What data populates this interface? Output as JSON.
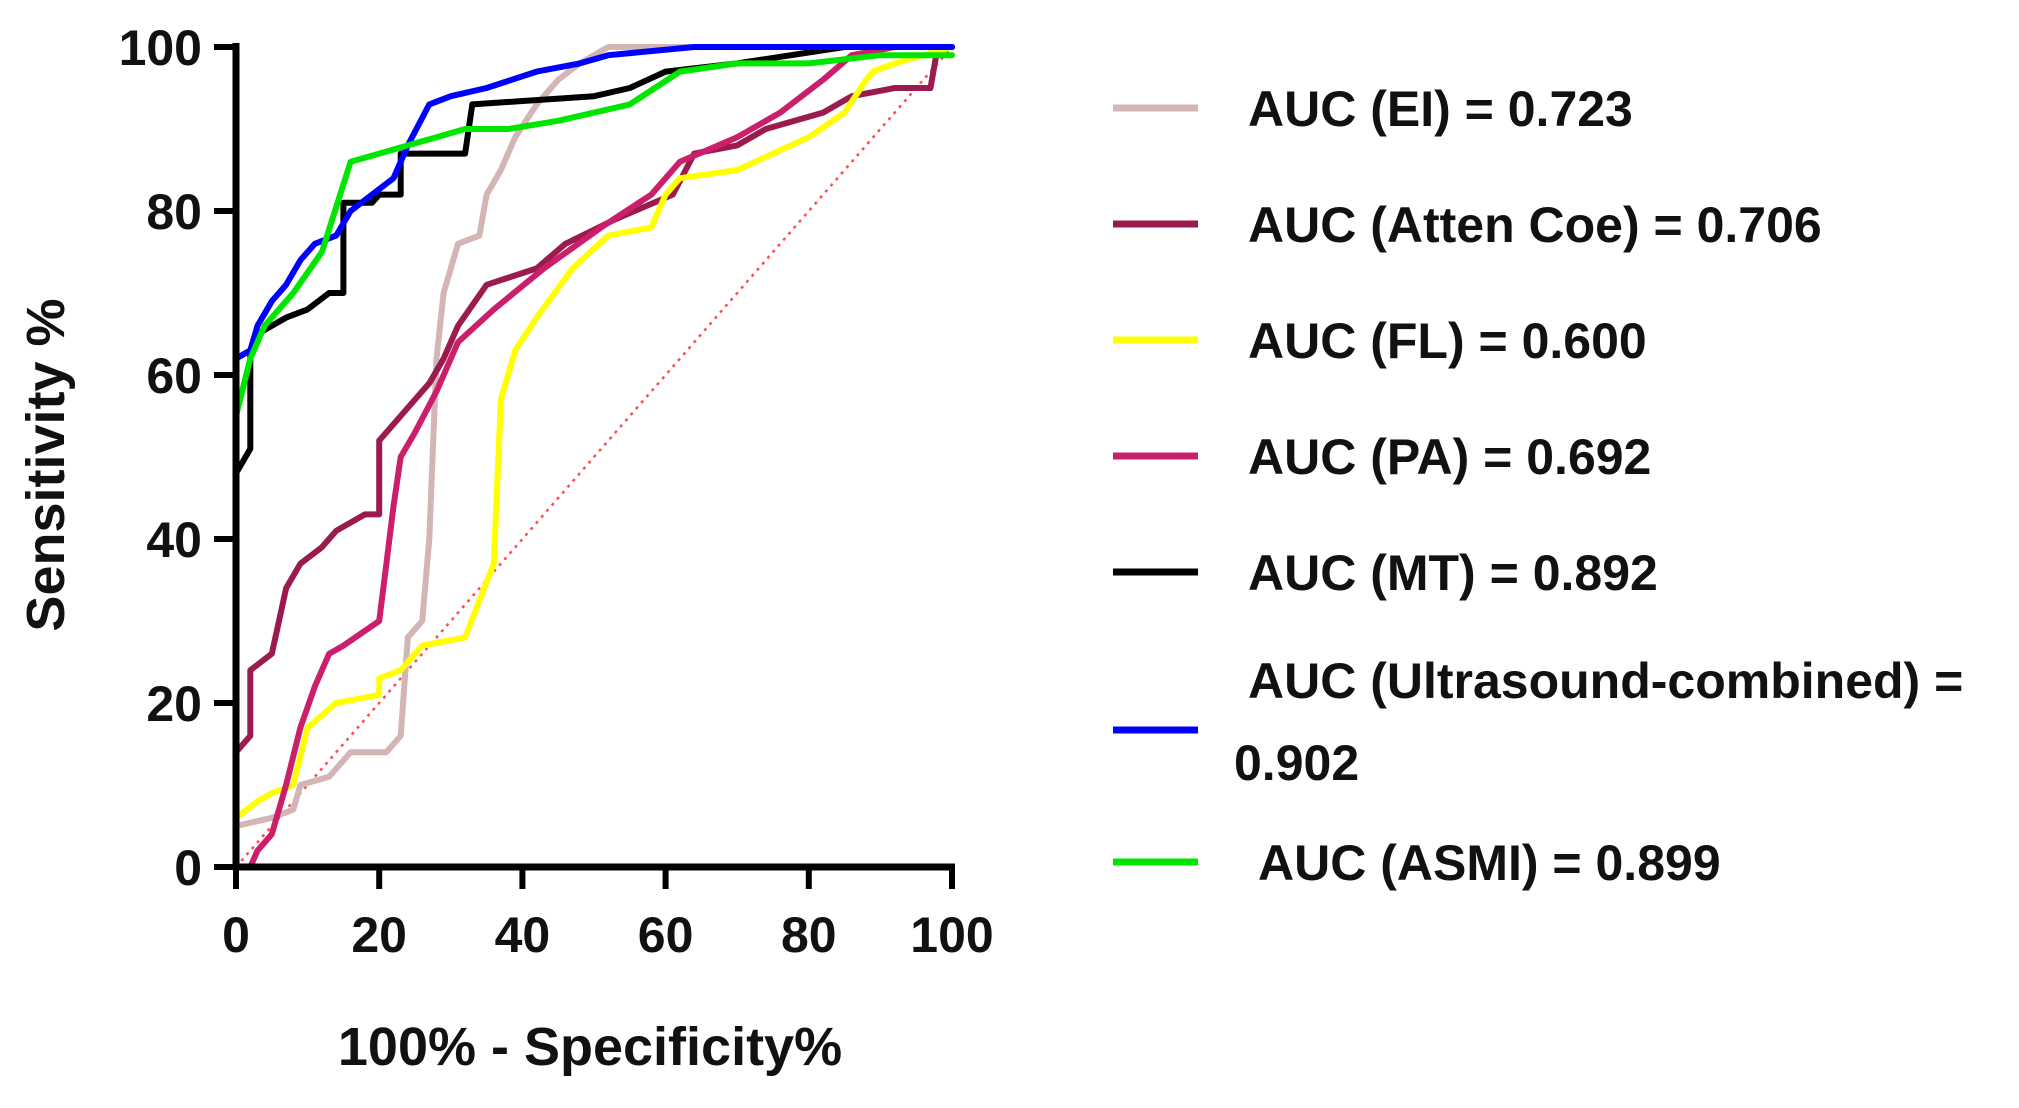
{
  "chart_data": {
    "type": "line",
    "title": "",
    "xlabel": "100% - Specificity%",
    "ylabel": "Sensitivity %",
    "xlim": [
      0,
      100
    ],
    "ylim": [
      0,
      100
    ],
    "x_ticks": [
      0,
      20,
      40,
      60,
      80,
      100
    ],
    "y_ticks": [
      0,
      20,
      40,
      60,
      80,
      100
    ],
    "grid": false,
    "legend_position": "right",
    "reference_line": {
      "style": "dotted",
      "color": "#ff4d4d",
      "points": [
        [
          0,
          0
        ],
        [
          100,
          100
        ]
      ]
    },
    "series": [
      {
        "name": "EI",
        "label": "AUC (EI)  = 0.723",
        "color": "#d4b5b5",
        "points": [
          [
            0,
            5
          ],
          [
            5,
            6
          ],
          [
            8,
            7
          ],
          [
            9,
            10
          ],
          [
            13,
            11
          ],
          [
            16,
            14
          ],
          [
            21,
            14
          ],
          [
            23,
            16
          ],
          [
            24,
            28
          ],
          [
            26,
            30
          ],
          [
            27,
            40
          ],
          [
            28,
            62
          ],
          [
            29,
            70
          ],
          [
            31,
            76
          ],
          [
            34,
            77
          ],
          [
            35,
            82
          ],
          [
            37,
            85
          ],
          [
            39,
            89
          ],
          [
            42,
            93
          ],
          [
            45,
            96
          ],
          [
            48,
            98
          ],
          [
            52,
            100
          ],
          [
            100,
            100
          ]
        ]
      },
      {
        "name": "Atten Coe",
        "label": "AUC (Atten Coe)  = 0.706",
        "color": "#9b1b4f",
        "points": [
          [
            0,
            14
          ],
          [
            2,
            16
          ],
          [
            2,
            24
          ],
          [
            5,
            26
          ],
          [
            6,
            30
          ],
          [
            7,
            34
          ],
          [
            9,
            37
          ],
          [
            12,
            39
          ],
          [
            14,
            41
          ],
          [
            18,
            43
          ],
          [
            20,
            43
          ],
          [
            20,
            52
          ],
          [
            22,
            54
          ],
          [
            27,
            59
          ],
          [
            29,
            62
          ],
          [
            31,
            66
          ],
          [
            35,
            71
          ],
          [
            42,
            73
          ],
          [
            46,
            76
          ],
          [
            53,
            79
          ],
          [
            61,
            82
          ],
          [
            64,
            87
          ],
          [
            70,
            88
          ],
          [
            74,
            90
          ],
          [
            82,
            92
          ],
          [
            86,
            94
          ],
          [
            92,
            95
          ],
          [
            97,
            95
          ],
          [
            98,
            100
          ],
          [
            100,
            100
          ]
        ]
      },
      {
        "name": "FL",
        "label": "AUC (FL)  = 0.600",
        "color": "#ffff00",
        "points": [
          [
            0,
            6
          ],
          [
            3,
            8
          ],
          [
            5,
            9
          ],
          [
            8,
            10
          ],
          [
            10,
            17
          ],
          [
            14,
            20
          ],
          [
            20,
            21
          ],
          [
            20,
            23
          ],
          [
            23,
            24
          ],
          [
            26,
            27
          ],
          [
            32,
            28
          ],
          [
            36,
            37
          ],
          [
            37,
            57
          ],
          [
            39,
            63
          ],
          [
            42,
            67
          ],
          [
            47,
            73
          ],
          [
            52,
            77
          ],
          [
            58,
            78
          ],
          [
            60,
            82
          ],
          [
            62,
            84
          ],
          [
            70,
            85
          ],
          [
            80,
            89
          ],
          [
            85,
            92
          ],
          [
            88,
            96
          ],
          [
            89,
            97
          ],
          [
            92,
            98
          ],
          [
            100,
            100
          ]
        ]
      },
      {
        "name": "PA",
        "label": "AUC (PA)  = 0.692",
        "color": "#cc1f6b",
        "points": [
          [
            0,
            0
          ],
          [
            2,
            0
          ],
          [
            3,
            2
          ],
          [
            5,
            4
          ],
          [
            7,
            10
          ],
          [
            9,
            17
          ],
          [
            11,
            22
          ],
          [
            13,
            26
          ],
          [
            15,
            27
          ],
          [
            20,
            30
          ],
          [
            21,
            37
          ],
          [
            22,
            44
          ],
          [
            23,
            50
          ],
          [
            25,
            53
          ],
          [
            28,
            58
          ],
          [
            31,
            64
          ],
          [
            36,
            68
          ],
          [
            43,
            73
          ],
          [
            51,
            78
          ],
          [
            58,
            82
          ],
          [
            62,
            86
          ],
          [
            70,
            89
          ],
          [
            76,
            92
          ],
          [
            82,
            96
          ],
          [
            86,
            99
          ],
          [
            92,
            100
          ],
          [
            100,
            100
          ]
        ]
      },
      {
        "name": "MT",
        "label": "AUC (MT)  = 0.892",
        "color": "#000000",
        "points": [
          [
            0,
            14
          ],
          [
            0,
            48
          ],
          [
            2,
            51
          ],
          [
            2,
            63
          ],
          [
            3,
            65
          ],
          [
            7,
            67
          ],
          [
            10,
            68
          ],
          [
            13,
            70
          ],
          [
            15,
            70
          ],
          [
            15,
            81
          ],
          [
            19,
            81
          ],
          [
            20,
            82
          ],
          [
            23,
            82
          ],
          [
            23,
            87
          ],
          [
            32,
            87
          ],
          [
            33,
            93
          ],
          [
            50,
            94
          ],
          [
            55,
            95
          ],
          [
            60,
            97
          ],
          [
            70,
            98
          ],
          [
            85,
            100
          ],
          [
            100,
            100
          ]
        ]
      },
      {
        "name": "Ultrasound-combined",
        "label": "AUC (Ultrasound-combined)  = 0.902",
        "color": "#0000ff",
        "points": [
          [
            0,
            48
          ],
          [
            0,
            62
          ],
          [
            2,
            63
          ],
          [
            3,
            66
          ],
          [
            5,
            69
          ],
          [
            7,
            71
          ],
          [
            9,
            74
          ],
          [
            11,
            76
          ],
          [
            14,
            77
          ],
          [
            16,
            80
          ],
          [
            19,
            82
          ],
          [
            22,
            84
          ],
          [
            24,
            88
          ],
          [
            27,
            93
          ],
          [
            30,
            94
          ],
          [
            35,
            95
          ],
          [
            42,
            97
          ],
          [
            48,
            98
          ],
          [
            52,
            99
          ],
          [
            64,
            100
          ],
          [
            100,
            100
          ]
        ]
      },
      {
        "name": "ASMI",
        "label": "AUC (ASMI)  = 0.899",
        "color": "#00e600",
        "points": [
          [
            0,
            55
          ],
          [
            2,
            62
          ],
          [
            4,
            66
          ],
          [
            8,
            70
          ],
          [
            12,
            75
          ],
          [
            16,
            86
          ],
          [
            20,
            87
          ],
          [
            24,
            88
          ],
          [
            28,
            89
          ],
          [
            32,
            90
          ],
          [
            38,
            90
          ],
          [
            45,
            91
          ],
          [
            55,
            93
          ],
          [
            62,
            97
          ],
          [
            70,
            98
          ],
          [
            80,
            98
          ],
          [
            90,
            99
          ],
          [
            100,
            99
          ]
        ]
      }
    ]
  }
}
